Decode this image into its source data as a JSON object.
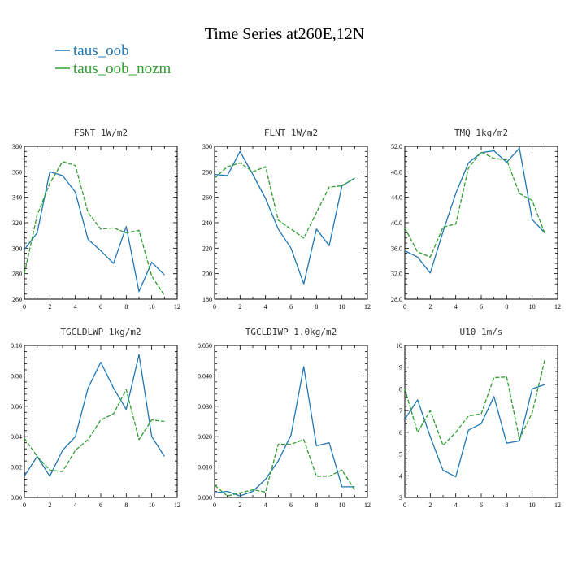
{
  "figure": {
    "title": "Time Series at260E,12N",
    "legend": [
      {
        "name": "taus_oob",
        "color": "#1f77b4",
        "dash": "solid"
      },
      {
        "name": "taus_oob_nozm",
        "color": "#2ca02c",
        "dash": "dashed"
      }
    ]
  },
  "chart_data": [
    {
      "type": "line",
      "title": "FSNT  1W/m2",
      "x": [
        0,
        1,
        2,
        3,
        4,
        5,
        6,
        7,
        8,
        9,
        10,
        11
      ],
      "xlim": [
        0,
        12
      ],
      "xticks": [
        "0",
        "2",
        "4",
        "6",
        "8",
        "10",
        "12"
      ],
      "ylim": [
        260,
        380
      ],
      "yticks": [
        "260",
        "280",
        "300",
        "320",
        "340",
        "360",
        "380"
      ],
      "series": [
        {
          "name": "taus_oob",
          "values": [
            299,
            312,
            360,
            357,
            344,
            307,
            298,
            288,
            317,
            266,
            289,
            279
          ]
        },
        {
          "name": "taus_oob_nozm",
          "values": [
            280,
            326,
            351,
            368,
            365,
            328,
            315,
            316,
            312,
            314,
            278,
            263
          ]
        }
      ]
    },
    {
      "type": "line",
      "title": "FLNT  1W/m2",
      "x": [
        0,
        1,
        2,
        3,
        4,
        5,
        6,
        7,
        8,
        9,
        10,
        11
      ],
      "xlim": [
        0,
        12
      ],
      "xticks": [
        "0",
        "2",
        "4",
        "6",
        "8",
        "10",
        "12"
      ],
      "ylim": [
        180,
        300
      ],
      "yticks": [
        "180",
        "200",
        "220",
        "240",
        "260",
        "280",
        "300"
      ],
      "series": [
        {
          "name": "taus_oob",
          "values": [
            278,
            277,
            296,
            278,
            259,
            235,
            220,
            192,
            235,
            222,
            269,
            275
          ]
        },
        {
          "name": "taus_oob_nozm",
          "values": [
            275,
            284,
            287,
            280,
            284,
            242,
            235,
            228,
            248,
            268,
            269,
            275
          ]
        }
      ]
    },
    {
      "type": "line",
      "title": "TMQ  1kg/m2",
      "x": [
        0,
        1,
        2,
        3,
        4,
        5,
        6,
        7,
        8,
        9,
        10,
        11
      ],
      "xlim": [
        0,
        12
      ],
      "xticks": [
        "0",
        "2",
        "4",
        "6",
        "8",
        "10",
        "12"
      ],
      "ylim": [
        28.0,
        52.0
      ],
      "yticks": [
        "28.0",
        "32.0",
        "36.0",
        "40.0",
        "44.0",
        "48.0",
        "52.0"
      ],
      "series": [
        {
          "name": "taus_oob",
          "values": [
            35.6,
            34.6,
            32.1,
            38.6,
            44.6,
            49.4,
            51.0,
            51.3,
            49.5,
            51.7,
            40.5,
            38.4
          ]
        },
        {
          "name": "taus_oob_nozm",
          "values": [
            39.2,
            35.4,
            34.6,
            39.3,
            39.8,
            48.6,
            51.1,
            50.1,
            49.9,
            44.6,
            43.5,
            38.3
          ]
        }
      ]
    },
    {
      "type": "line",
      "title": "TGCLDLWP  1kg/m2",
      "x": [
        0,
        1,
        2,
        3,
        4,
        5,
        6,
        7,
        8,
        9,
        10,
        11
      ],
      "xlim": [
        0,
        12
      ],
      "xticks": [
        "0",
        "2",
        "4",
        "6",
        "8",
        "10",
        "12"
      ],
      "ylim": [
        0.0,
        0.1
      ],
      "yticks": [
        "0.00",
        "0.02",
        "0.04",
        "0.06",
        "0.08",
        "0.10"
      ],
      "series": [
        {
          "name": "taus_oob",
          "values": [
            0.014,
            0.027,
            0.014,
            0.031,
            0.04,
            0.072,
            0.089,
            0.072,
            0.058,
            0.094,
            0.04,
            0.027
          ]
        },
        {
          "name": "taus_oob_nozm",
          "values": [
            0.039,
            0.027,
            0.018,
            0.017,
            0.031,
            0.038,
            0.051,
            0.055,
            0.071,
            0.038,
            0.051,
            0.05
          ]
        }
      ]
    },
    {
      "type": "line",
      "title": "TGCLDIWP  1.0kg/m2",
      "x": [
        0,
        1,
        2,
        3,
        4,
        5,
        6,
        7,
        8,
        9,
        10,
        11
      ],
      "xlim": [
        0,
        12
      ],
      "xticks": [
        "0",
        "2",
        "4",
        "6",
        "8",
        "10",
        "12"
      ],
      "ylim": [
        0.0,
        0.05
      ],
      "yticks": [
        "0.000",
        "0.010",
        "0.020",
        "0.030",
        "0.040",
        "0.050"
      ],
      "series": [
        {
          "name": "taus_oob",
          "values": [
            0.0015,
            0.002,
            0.0005,
            0.002,
            0.006,
            0.012,
            0.0205,
            0.043,
            0.017,
            0.018,
            0.0035,
            0.0035
          ]
        },
        {
          "name": "taus_oob_nozm",
          "values": [
            0.004,
            0.0005,
            0.0015,
            0.0025,
            0.0018,
            0.0175,
            0.0175,
            0.019,
            0.007,
            0.007,
            0.009,
            0.0025
          ]
        }
      ]
    },
    {
      "type": "line",
      "title": "U10  1m/s",
      "x": [
        0,
        1,
        2,
        3,
        4,
        5,
        6,
        7,
        8,
        9,
        10,
        11
      ],
      "xlim": [
        0,
        12
      ],
      "xticks": [
        "0",
        "2",
        "4",
        "6",
        "8",
        "10",
        "12"
      ],
      "ylim": [
        3,
        10
      ],
      "yticks": [
        "3",
        "4",
        "5",
        "6",
        "7",
        "8",
        "9",
        "10"
      ],
      "series": [
        {
          "name": "taus_oob",
          "values": [
            6.6,
            7.5,
            5.8,
            4.25,
            3.95,
            6.1,
            6.4,
            7.65,
            5.5,
            5.6,
            8.0,
            8.2
          ]
        },
        {
          "name": "taus_oob_nozm",
          "values": [
            8.0,
            6.0,
            7.0,
            5.4,
            6.0,
            6.75,
            6.85,
            8.52,
            8.55,
            5.7,
            6.9,
            9.35
          ]
        }
      ]
    }
  ]
}
